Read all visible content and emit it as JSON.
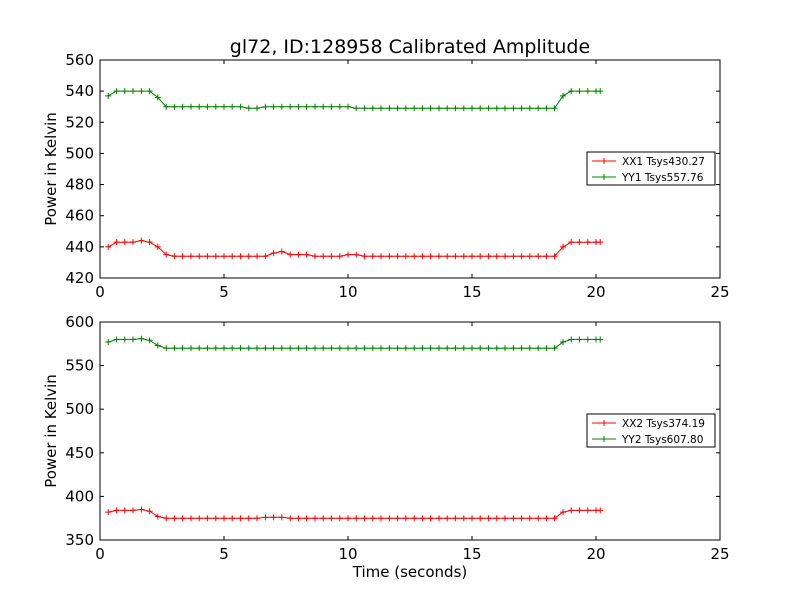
{
  "title": "gl72, ID:128958 Calibrated Amplitude",
  "colors": {
    "red": "#ff0000",
    "green": "#008000",
    "axes": "#000000"
  },
  "chart_data": [
    {
      "type": "line",
      "title": "gl72, ID:128958 Calibrated Amplitude",
      "xlabel": "",
      "ylabel": "Power in Kelvin",
      "xlim": [
        0,
        25
      ],
      "ylim": [
        420,
        560
      ],
      "xticks": [
        "0",
        "5",
        "10",
        "15",
        "20",
        "25"
      ],
      "yticks": [
        "420",
        "440",
        "460",
        "480",
        "500",
        "520",
        "540",
        "560"
      ],
      "grid": false,
      "legend_position": "right",
      "x": [
        0.33,
        0.67,
        1.0,
        1.33,
        1.67,
        2.0,
        2.33,
        2.67,
        3.0,
        3.33,
        3.67,
        4.0,
        4.33,
        4.67,
        5.0,
        5.33,
        5.67,
        6.0,
        6.33,
        6.67,
        7.0,
        7.33,
        7.67,
        8.0,
        8.33,
        8.67,
        9.0,
        9.33,
        9.67,
        10.0,
        10.33,
        10.67,
        11.0,
        11.33,
        11.67,
        12.0,
        12.33,
        12.67,
        13.0,
        13.33,
        13.67,
        14.0,
        14.33,
        14.67,
        15.0,
        15.33,
        15.67,
        16.0,
        16.33,
        16.67,
        17.0,
        17.33,
        17.67,
        18.0,
        18.33,
        18.67,
        19.0,
        19.33,
        19.67,
        20.0,
        20.17
      ],
      "series": [
        {
          "name": "XX1 Tsys430.27",
          "color": "#ff0000",
          "values": [
            440,
            443,
            443,
            443,
            444,
            443,
            440,
            435,
            434,
            434,
            434,
            434,
            434,
            434,
            434,
            434,
            434,
            434,
            434,
            434,
            436,
            437,
            435,
            435,
            435,
            434,
            434,
            434,
            434,
            435,
            435,
            434,
            434,
            434,
            434,
            434,
            434,
            434,
            434,
            434,
            434,
            434,
            434,
            434,
            434,
            434,
            434,
            434,
            434,
            434,
            434,
            434,
            434,
            434,
            434,
            440,
            443,
            443,
            443,
            443,
            443
          ]
        },
        {
          "name": "YY1 Tsys557.76",
          "color": "#008000",
          "values": [
            537,
            540,
            540,
            540,
            540,
            540,
            536,
            530,
            530,
            530,
            530,
            530,
            530,
            530,
            530,
            530,
            530,
            529,
            529,
            530,
            530,
            530,
            530,
            530,
            530,
            530,
            530,
            530,
            530,
            530,
            529,
            529,
            529,
            529,
            529,
            529,
            529,
            529,
            529,
            529,
            529,
            529,
            529,
            529,
            529,
            529,
            529,
            529,
            529,
            529,
            529,
            529,
            529,
            529,
            529,
            537,
            540,
            540,
            540,
            540,
            540
          ]
        }
      ]
    },
    {
      "type": "line",
      "title": "",
      "xlabel": "Time (seconds)",
      "ylabel": "Power in Kelvin",
      "xlim": [
        0,
        25
      ],
      "ylim": [
        350,
        600
      ],
      "xticks": [
        "0",
        "5",
        "10",
        "15",
        "20",
        "25"
      ],
      "yticks": [
        "350",
        "400",
        "450",
        "500",
        "550",
        "600"
      ],
      "grid": false,
      "legend_position": "right",
      "x": [
        0.33,
        0.67,
        1.0,
        1.33,
        1.67,
        2.0,
        2.33,
        2.67,
        3.0,
        3.33,
        3.67,
        4.0,
        4.33,
        4.67,
        5.0,
        5.33,
        5.67,
        6.0,
        6.33,
        6.67,
        7.0,
        7.33,
        7.67,
        8.0,
        8.33,
        8.67,
        9.0,
        9.33,
        9.67,
        10.0,
        10.33,
        10.67,
        11.0,
        11.33,
        11.67,
        12.0,
        12.33,
        12.67,
        13.0,
        13.33,
        13.67,
        14.0,
        14.33,
        14.67,
        15.0,
        15.33,
        15.67,
        16.0,
        16.33,
        16.67,
        17.0,
        17.33,
        17.67,
        18.0,
        18.33,
        18.67,
        19.0,
        19.33,
        19.67,
        20.0,
        20.17
      ],
      "series": [
        {
          "name": "XX2 Tsys374.19",
          "color": "#ff0000",
          "values": [
            382,
            384,
            384,
            384,
            385,
            383,
            377,
            375,
            375,
            375,
            375,
            375,
            375,
            375,
            375,
            375,
            375,
            375,
            375,
            376,
            376,
            376,
            375,
            375,
            375,
            375,
            375,
            375,
            375,
            375,
            375,
            375,
            375,
            375,
            375,
            375,
            375,
            375,
            375,
            375,
            375,
            375,
            375,
            375,
            375,
            375,
            375,
            375,
            375,
            375,
            375,
            375,
            375,
            375,
            375,
            382,
            384,
            384,
            384,
            384,
            384
          ]
        },
        {
          "name": "YY2 Tsys607.80",
          "color": "#008000",
          "values": [
            577,
            580,
            580,
            580,
            581,
            579,
            573,
            570,
            570,
            570,
            570,
            570,
            570,
            570,
            570,
            570,
            570,
            570,
            570,
            570,
            570,
            570,
            570,
            570,
            570,
            570,
            570,
            570,
            570,
            570,
            570,
            570,
            570,
            570,
            570,
            570,
            570,
            570,
            570,
            570,
            570,
            570,
            570,
            570,
            570,
            570,
            570,
            570,
            570,
            570,
            570,
            570,
            570,
            570,
            570,
            577,
            580,
            580,
            580,
            580,
            580
          ]
        }
      ]
    }
  ]
}
